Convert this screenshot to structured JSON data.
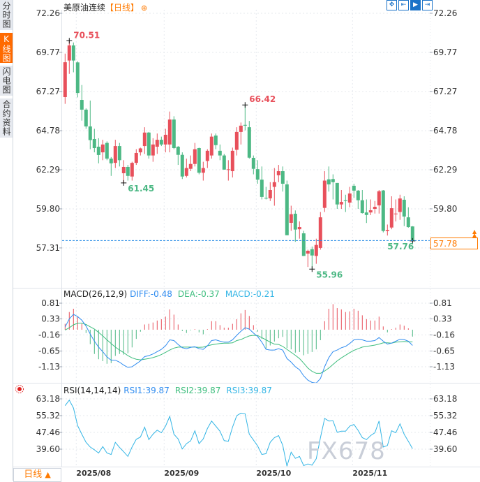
{
  "sidebar": {
    "tabs": [
      {
        "label": "分时图",
        "active": false
      },
      {
        "label": "K线图",
        "active": true
      },
      {
        "label": "闪电图",
        "active": false
      },
      {
        "label": "合约资料",
        "active": false
      }
    ]
  },
  "header": {
    "symbol": "美原油连续",
    "period": "【日线】",
    "add_icon": "⊕"
  },
  "toolbar": {
    "icons": [
      {
        "name": "crosshair-move-icon",
        "glyph": "✥",
        "active": false
      },
      {
        "name": "zoom-range-icon",
        "glyph": "⇤",
        "active": false
      },
      {
        "name": "play-step-icon",
        "glyph": "▶",
        "active": true
      },
      {
        "name": "scroll-right-icon",
        "glyph": "⇥",
        "active": false
      }
    ]
  },
  "colors": {
    "up": "#e8505b",
    "down": "#4cb884",
    "diff": "#2f8cf0",
    "dea": "#3dbd7d",
    "rsi": "#33b5e5",
    "accent": "#ff7a00",
    "last_line": "#1e88e5"
  },
  "footer": {
    "period_label": "日线",
    "period_icon": "▲"
  },
  "watermark": "FX678",
  "chart_data": [
    {
      "type": "candlestick",
      "title": "美原油连续",
      "yticks": [
        "72.26",
        "69.77",
        "67.27",
        "64.78",
        "62.29",
        "59.80",
        "57.31"
      ],
      "ylim": [
        57.31,
        72.26
      ],
      "grid": true,
      "xticks": [
        {
          "label": "2025/08",
          "index": 4
        },
        {
          "label": "2025/09",
          "index": 25
        },
        {
          "label": "2025/10",
          "index": 47
        },
        {
          "label": "2025/11",
          "index": 70
        }
      ],
      "last_price": "57.78",
      "annotations": [
        {
          "label": "70.51",
          "index": 2,
          "kind": "high"
        },
        {
          "label": "61.45",
          "index": 15,
          "kind": "low"
        },
        {
          "label": "66.42",
          "index": 44,
          "kind": "high"
        },
        {
          "label": "55.96",
          "index": 60,
          "kind": "low"
        },
        {
          "label": "57.76",
          "index": 84,
          "kind": "low"
        }
      ],
      "ohlc": [
        [
          66.92,
          69.69,
          66.49,
          69.14
        ],
        [
          69.25,
          70.51,
          68.4,
          70.21
        ],
        [
          70.21,
          70.4,
          68.5,
          69.25
        ],
        [
          69.13,
          69.2,
          66.9,
          67.18
        ],
        [
          66.74,
          67.69,
          65.42,
          66.12
        ],
        [
          66.12,
          66.2,
          64.9,
          65.05
        ],
        [
          65.05,
          66.7,
          63.6,
          64.18
        ],
        [
          64.25,
          64.9,
          63.4,
          63.67
        ],
        [
          63.76,
          64.3,
          62.7,
          63.23
        ],
        [
          63.4,
          64.2,
          62.9,
          63.9
        ],
        [
          64.0,
          64.1,
          62.9,
          63.0
        ],
        [
          63.0,
          63.1,
          61.9,
          62.7
        ],
        [
          62.73,
          64.2,
          62.4,
          63.8
        ],
        [
          63.8,
          64.0,
          62.5,
          62.9
        ],
        [
          62.07,
          62.9,
          61.45,
          62.47
        ],
        [
          62.47,
          62.6,
          61.6,
          61.9
        ],
        [
          61.86,
          62.8,
          61.6,
          62.73
        ],
        [
          62.73,
          63.6,
          62.6,
          63.36
        ],
        [
          63.4,
          63.7,
          63.2,
          63.65
        ],
        [
          63.8,
          65.0,
          63.3,
          64.66
        ],
        [
          64.66,
          64.7,
          63.0,
          63.2
        ],
        [
          63.2,
          64.3,
          62.8,
          63.9
        ],
        [
          63.76,
          64.6,
          63.3,
          64.2
        ],
        [
          64.2,
          64.4,
          63.8,
          63.9
        ],
        [
          63.9,
          64.9,
          63.4,
          64.52
        ],
        [
          63.9,
          66.0,
          63.4,
          65.49
        ],
        [
          65.49,
          65.7,
          63.6,
          63.67
        ],
        [
          63.76,
          63.8,
          62.6,
          63.24
        ],
        [
          63.24,
          63.4,
          61.7,
          61.86
        ],
        [
          61.9,
          63.0,
          61.8,
          62.4
        ],
        [
          62.35,
          63.2,
          62.2,
          62.66
        ],
        [
          62.66,
          64.0,
          62.5,
          63.6
        ],
        [
          63.67,
          63.7,
          62.0,
          62.1
        ],
        [
          62.1,
          62.8,
          61.6,
          62.4
        ],
        [
          62.85,
          63.6,
          62.4,
          63.5
        ],
        [
          63.2,
          64.6,
          63.0,
          64.4
        ],
        [
          64.47,
          64.6,
          63.6,
          63.86
        ],
        [
          63.5,
          63.9,
          62.9,
          63.2
        ],
        [
          63.2,
          63.3,
          62.3,
          62.3
        ],
        [
          62.3,
          62.9,
          61.6,
          62.32
        ],
        [
          62.2,
          63.7,
          61.8,
          63.5
        ],
        [
          63.56,
          65.0,
          63.2,
          64.7
        ],
        [
          64.7,
          65.3,
          63.9,
          65.1
        ],
        [
          65.15,
          66.42,
          64.8,
          65.1
        ],
        [
          65.0,
          65.4,
          63.0,
          63.06
        ],
        [
          63.05,
          63.2,
          62.0,
          62.35
        ],
        [
          62.33,
          62.9,
          61.4,
          61.66
        ],
        [
          61.66,
          62.5,
          60.4,
          60.56
        ],
        [
          60.5,
          61.2,
          60.4,
          60.47
        ],
        [
          60.47,
          61.5,
          60.3,
          61.0
        ],
        [
          61.2,
          62.4,
          60.0,
          61.5
        ],
        [
          61.94,
          62.6,
          61.5,
          62.2
        ],
        [
          62.2,
          62.5,
          60.9,
          61.4
        ],
        [
          61.36,
          61.6,
          58.12,
          58.12
        ],
        [
          58.91,
          60.0,
          58.4,
          59.46
        ],
        [
          59.49,
          59.7,
          57.7,
          58.48
        ],
        [
          58.5,
          59.0,
          57.9,
          58.64
        ],
        [
          58.24,
          58.4,
          56.8,
          56.8
        ],
        [
          56.95,
          57.2,
          56.1,
          57.13
        ],
        [
          57.23,
          57.4,
          55.96,
          56.83
        ],
        [
          56.8,
          57.9,
          56.3,
          57.5
        ],
        [
          57.31,
          59.6,
          57.2,
          59.26
        ],
        [
          59.86,
          62.2,
          59.6,
          61.6
        ],
        [
          61.68,
          62.5,
          60.9,
          61.36
        ],
        [
          61.7,
          62.0,
          60.4,
          61.5
        ],
        [
          61.45,
          61.45,
          59.8,
          60.08
        ],
        [
          60.08,
          61.0,
          59.8,
          60.24
        ],
        [
          60.35,
          60.7,
          59.6,
          60.3
        ],
        [
          60.2,
          61.2,
          59.9,
          60.78
        ],
        [
          61.27,
          61.4,
          60.5,
          60.96
        ],
        [
          60.96,
          61.0,
          59.8,
          60.35
        ],
        [
          60.35,
          61.0,
          59.5,
          59.53
        ],
        [
          59.57,
          60.4,
          58.9,
          59.41
        ],
        [
          59.57,
          60.4,
          59.4,
          59.71
        ],
        [
          59.8,
          60.3,
          59.5,
          59.93
        ],
        [
          60.02,
          61.0,
          59.5,
          60.92
        ],
        [
          60.97,
          61.0,
          58.3,
          58.39
        ],
        [
          58.39,
          58.8,
          58.1,
          58.46
        ],
        [
          58.61,
          60.6,
          58.5,
          59.84
        ],
        [
          59.5,
          60.4,
          59.0,
          59.5
        ],
        [
          59.6,
          60.7,
          59.1,
          60.46
        ],
        [
          60.38,
          60.6,
          58.7,
          59.31
        ],
        [
          59.26,
          59.9,
          58.6,
          58.64
        ],
        [
          58.68,
          58.7,
          57.76,
          57.78
        ]
      ]
    },
    {
      "type": "line",
      "title": "MACD(26,12,9)",
      "legend": [
        {
          "label": "DIFF:-0.48"
        },
        {
          "label": "DEA:-0.37"
        },
        {
          "label": "MACD:-0.21"
        }
      ],
      "yticks": [
        "0.81",
        "0.33",
        "-0.16",
        "-0.65",
        "-1.13"
      ],
      "ylim": [
        -1.13,
        0.81
      ],
      "diff": [
        0.08,
        0.33,
        0.47,
        0.4,
        0.29,
        0.11,
        -0.13,
        -0.35,
        -0.53,
        -0.67,
        -0.83,
        -0.93,
        -0.93,
        -0.99,
        -1.08,
        -1.15,
        -1.13,
        -1.04,
        -0.95,
        -0.82,
        -0.79,
        -0.74,
        -0.67,
        -0.6,
        -0.49,
        -0.31,
        -0.33,
        -0.45,
        -0.55,
        -0.58,
        -0.54,
        -0.52,
        -0.58,
        -0.6,
        -0.49,
        -0.33,
        -0.31,
        -0.35,
        -0.38,
        -0.38,
        -0.31,
        -0.17,
        -0.05,
        0.06,
        0.02,
        -0.1,
        -0.21,
        -0.38,
        -0.6,
        -0.62,
        -0.62,
        -0.58,
        -0.62,
        -0.88,
        -0.99,
        -1.13,
        -1.22,
        -1.41,
        -1.54,
        -1.61,
        -1.63,
        -1.49,
        -1.13,
        -0.85,
        -0.67,
        -0.62,
        -0.55,
        -0.51,
        -0.42,
        -0.31,
        -0.29,
        -0.31,
        -0.35,
        -0.35,
        -0.33,
        -0.24,
        -0.35,
        -0.44,
        -0.41,
        -0.35,
        -0.29,
        -0.3,
        -0.35,
        -0.48
      ],
      "dea": [
        -0.01,
        0.06,
        0.15,
        0.2,
        0.2,
        0.16,
        0.09,
        0.02,
        -0.08,
        -0.19,
        -0.31,
        -0.42,
        -0.53,
        -0.62,
        -0.7,
        -0.79,
        -0.86,
        -0.9,
        -0.92,
        -0.9,
        -0.88,
        -0.85,
        -0.81,
        -0.76,
        -0.69,
        -0.62,
        -0.56,
        -0.53,
        -0.53,
        -0.53,
        -0.53,
        -0.53,
        -0.54,
        -0.53,
        -0.49,
        -0.46,
        -0.44,
        -0.42,
        -0.41,
        -0.41,
        -0.4,
        -0.33,
        -0.3,
        -0.24,
        -0.19,
        -0.17,
        -0.18,
        -0.24,
        -0.31,
        -0.38,
        -0.44,
        -0.45,
        -0.51,
        -0.6,
        -0.69,
        -0.78,
        -0.88,
        -1.02,
        -1.17,
        -1.27,
        -1.33,
        -1.33,
        -1.26,
        -1.17,
        -1.06,
        -0.95,
        -0.86,
        -0.78,
        -0.7,
        -0.63,
        -0.58,
        -0.53,
        -0.51,
        -0.49,
        -0.47,
        -0.44,
        -0.4,
        -0.4,
        -0.41,
        -0.38,
        -0.37,
        -0.36,
        -0.37,
        -0.37
      ],
      "macd": [
        0.18,
        0.54,
        0.64,
        0.4,
        0.18,
        -0.1,
        -0.44,
        -0.74,
        -0.9,
        -0.96,
        -1.04,
        -1.02,
        -0.8,
        -0.74,
        -0.76,
        -0.72,
        -0.54,
        -0.28,
        -0.06,
        0.16,
        0.18,
        0.22,
        0.28,
        0.32,
        0.4,
        0.62,
        0.46,
        0.16,
        -0.04,
        -0.1,
        -0.02,
        0.02,
        -0.08,
        -0.14,
        0.02,
        0.26,
        0.26,
        0.14,
        0.06,
        0.06,
        0.18,
        0.32,
        0.5,
        0.6,
        0.42,
        0.14,
        -0.06,
        -0.28,
        -0.58,
        -0.48,
        -0.36,
        -0.26,
        -0.22,
        -0.56,
        -0.6,
        -0.7,
        -0.68,
        -0.78,
        -0.74,
        -0.68,
        -0.6,
        -0.32,
        0.26,
        0.64,
        0.78,
        0.66,
        0.62,
        0.54,
        0.56,
        0.64,
        0.58,
        0.44,
        0.32,
        0.28,
        0.28,
        0.4,
        0.1,
        -0.08,
        0.02,
        0.06,
        0.16,
        0.12,
        0.04,
        -0.21
      ]
    },
    {
      "type": "line",
      "title": "RSI(14,14,14)",
      "legend": [
        {
          "label": "RSI1:39.87"
        },
        {
          "label": "RSI2:39.87"
        },
        {
          "label": "RSI3:39.87"
        }
      ],
      "yticks": [
        "63.18",
        "55.32",
        "47.46",
        "39.60"
      ],
      "ylim": [
        31.74,
        63.18
      ],
      "rsi": [
        60.0,
        62.6,
        58.9,
        50.6,
        46.6,
        42.8,
        40.6,
        39.3,
        37.8,
        40.8,
        37.8,
        37.1,
        42.8,
        40.4,
        38.4,
        36.2,
        40.6,
        44.2,
        45.3,
        49.9,
        44.1,
        46.6,
        48.5,
        47.3,
        50.4,
        55.0,
        46.6,
        44.4,
        39.7,
        42.2,
        43.5,
        48.2,
        42.2,
        44.4,
        49.3,
        52.8,
        50.4,
        48.0,
        43.6,
        43.3,
        49.9,
        55.3,
        56.5,
        56.2,
        46.6,
        43.9,
        41.1,
        37.1,
        37.5,
        42.8,
        45.0,
        46.0,
        41.4,
        31.6,
        38.2,
        35.3,
        36.2,
        31.9,
        32.7,
        32.1,
        35.1,
        45.0,
        54.0,
        52.8,
        52.9,
        47.5,
        48.0,
        48.0,
        50.4,
        51.2,
        48.4,
        45.0,
        44.1,
        46.0,
        47.3,
        52.8,
        40.6,
        41.3,
        48.2,
        47.3,
        51.5,
        46.6,
        43.3,
        39.87
      ]
    }
  ]
}
